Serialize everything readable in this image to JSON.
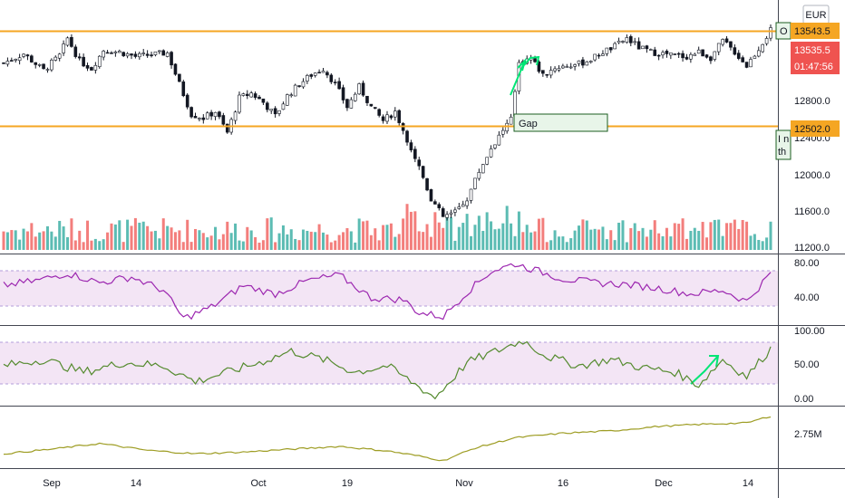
{
  "currency": "EUR",
  "price_tags": {
    "top_level": "13543.5",
    "last_price": "13535.5",
    "countdown": "01:47:56",
    "bottom_level": "12502.0"
  },
  "annotations": {
    "gap_label": "Gap",
    "top_note_fragment": "O",
    "side_note_line1": "I n",
    "side_note_line2": "th"
  },
  "colors": {
    "level_line": "#f5a623",
    "candle_up": "#26a69a",
    "candle_down": "#ef5350",
    "arrow": "#00e676",
    "rsi_line": "#9c27b0",
    "stoch_line": "#558b2f",
    "obv_line": "#9e9d24",
    "band_fill": "#f3e5f5",
    "last_price_bg": "#ef5350",
    "level_tag_bg": "#f5a623"
  },
  "chart_data": [
    {
      "type": "candlestick",
      "name": "price",
      "x_tick_labels": [
        "Sep",
        "14",
        "Oct",
        "19",
        "Nov",
        "16",
        "Dec",
        "14"
      ],
      "y_tick_labels": [
        "12800.0",
        "12400.0",
        "12000.0",
        "11600.0",
        "11200.0"
      ],
      "horizontal_levels": [
        13543.5,
        12502.0
      ],
      "ylim": [
        11150,
        13650
      ],
      "close_path": [
        {
          "x": 0,
          "y": 13180
        },
        {
          "x": 5,
          "y": 13280
        },
        {
          "x": 10,
          "y": 13100
        },
        {
          "x": 14,
          "y": 13260
        },
        {
          "x": 16,
          "y": 13450
        },
        {
          "x": 19,
          "y": 13200
        },
        {
          "x": 22,
          "y": 13120
        },
        {
          "x": 25,
          "y": 13320
        },
        {
          "x": 29,
          "y": 13300
        },
        {
          "x": 33,
          "y": 13250
        },
        {
          "x": 37,
          "y": 13270
        },
        {
          "x": 41,
          "y": 13290
        },
        {
          "x": 44,
          "y": 12950
        },
        {
          "x": 47,
          "y": 12620
        },
        {
          "x": 50,
          "y": 12580
        },
        {
          "x": 53,
          "y": 12650
        },
        {
          "x": 56,
          "y": 12420
        },
        {
          "x": 59,
          "y": 12800
        },
        {
          "x": 62,
          "y": 12850
        },
        {
          "x": 65,
          "y": 12750
        },
        {
          "x": 68,
          "y": 12600
        },
        {
          "x": 71,
          "y": 12820
        },
        {
          "x": 74,
          "y": 12950
        },
        {
          "x": 77,
          "y": 13050
        },
        {
          "x": 80,
          "y": 13120
        },
        {
          "x": 83,
          "y": 12950
        },
        {
          "x": 86,
          "y": 12700
        },
        {
          "x": 89,
          "y": 12920
        },
        {
          "x": 92,
          "y": 12700
        },
        {
          "x": 95,
          "y": 12550
        },
        {
          "x": 98,
          "y": 12650
        },
        {
          "x": 101,
          "y": 12350
        },
        {
          "x": 104,
          "y": 12050
        },
        {
          "x": 107,
          "y": 11700
        },
        {
          "x": 110,
          "y": 11500
        },
        {
          "x": 113,
          "y": 11550
        },
        {
          "x": 116,
          "y": 11700
        },
        {
          "x": 119,
          "y": 12000
        },
        {
          "x": 122,
          "y": 12250
        },
        {
          "x": 125,
          "y": 12450
        },
        {
          "x": 127,
          "y": 12560
        },
        {
          "x": 129,
          "y": 13200
        },
        {
          "x": 132,
          "y": 13230
        },
        {
          "x": 135,
          "y": 13050
        },
        {
          "x": 138,
          "y": 13130
        },
        {
          "x": 141,
          "y": 13150
        },
        {
          "x": 144,
          "y": 13170
        },
        {
          "x": 147,
          "y": 13220
        },
        {
          "x": 150,
          "y": 13300
        },
        {
          "x": 153,
          "y": 13360
        },
        {
          "x": 156,
          "y": 13450
        },
        {
          "x": 159,
          "y": 13350
        },
        {
          "x": 162,
          "y": 13300
        },
        {
          "x": 165,
          "y": 13280
        },
        {
          "x": 168,
          "y": 13260
        },
        {
          "x": 171,
          "y": 13250
        },
        {
          "x": 174,
          "y": 13300
        },
        {
          "x": 177,
          "y": 13240
        },
        {
          "x": 180,
          "y": 13420
        },
        {
          "x": 183,
          "y": 13300
        },
        {
          "x": 186,
          "y": 13150
        },
        {
          "x": 189,
          "y": 13340
        },
        {
          "x": 192,
          "y": 13535.5
        }
      ]
    },
    {
      "type": "bar",
      "name": "volume",
      "description_from_pixels": "volume histogram at the bottom of the price pane, bars coloured by candle direction"
    },
    {
      "type": "line",
      "name": "oscillator-1",
      "y_tick_labels": [
        "80.00",
        "40.00"
      ],
      "ylim": [
        14,
        87
      ],
      "band": [
        30,
        70
      ],
      "points": [
        {
          "x": 0,
          "y": 55
        },
        {
          "x": 8,
          "y": 60
        },
        {
          "x": 16,
          "y": 68
        },
        {
          "x": 24,
          "y": 58
        },
        {
          "x": 32,
          "y": 64
        },
        {
          "x": 40,
          "y": 50
        },
        {
          "x": 45,
          "y": 20
        },
        {
          "x": 52,
          "y": 32
        },
        {
          "x": 60,
          "y": 55
        },
        {
          "x": 68,
          "y": 46
        },
        {
          "x": 76,
          "y": 60
        },
        {
          "x": 84,
          "y": 66
        },
        {
          "x": 92,
          "y": 42
        },
        {
          "x": 100,
          "y": 40
        },
        {
          "x": 104,
          "y": 26
        },
        {
          "x": 110,
          "y": 22
        },
        {
          "x": 116,
          "y": 48
        },
        {
          "x": 122,
          "y": 70
        },
        {
          "x": 128,
          "y": 78
        },
        {
          "x": 134,
          "y": 70
        },
        {
          "x": 140,
          "y": 62
        },
        {
          "x": 148,
          "y": 58
        },
        {
          "x": 156,
          "y": 56
        },
        {
          "x": 164,
          "y": 52
        },
        {
          "x": 172,
          "y": 46
        },
        {
          "x": 180,
          "y": 50
        },
        {
          "x": 186,
          "y": 38
        },
        {
          "x": 192,
          "y": 68
        }
      ]
    },
    {
      "type": "line",
      "name": "oscillator-2",
      "y_tick_labels": [
        "100.00",
        "50.00",
        "0.00"
      ],
      "ylim": [
        -5,
        115
      ],
      "band": [
        20,
        80
      ],
      "points": [
        {
          "x": 0,
          "y": 55
        },
        {
          "x": 10,
          "y": 65
        },
        {
          "x": 20,
          "y": 45
        },
        {
          "x": 30,
          "y": 60
        },
        {
          "x": 40,
          "y": 55
        },
        {
          "x": 48,
          "y": 30
        },
        {
          "x": 56,
          "y": 45
        },
        {
          "x": 64,
          "y": 60
        },
        {
          "x": 72,
          "y": 78
        },
        {
          "x": 80,
          "y": 65
        },
        {
          "x": 88,
          "y": 45
        },
        {
          "x": 96,
          "y": 55
        },
        {
          "x": 102,
          "y": 30
        },
        {
          "x": 108,
          "y": 5
        },
        {
          "x": 116,
          "y": 60
        },
        {
          "x": 124,
          "y": 80
        },
        {
          "x": 130,
          "y": 95
        },
        {
          "x": 136,
          "y": 70
        },
        {
          "x": 144,
          "y": 55
        },
        {
          "x": 152,
          "y": 65
        },
        {
          "x": 160,
          "y": 52
        },
        {
          "x": 168,
          "y": 45
        },
        {
          "x": 174,
          "y": 25
        },
        {
          "x": 180,
          "y": 65
        },
        {
          "x": 186,
          "y": 38
        },
        {
          "x": 192,
          "y": 82
        }
      ]
    },
    {
      "type": "line",
      "name": "cumulative",
      "y_tick_labels": [
        "2.75M"
      ],
      "ylim": [
        0,
        100
      ],
      "points": [
        {
          "x": 0,
          "y": 22
        },
        {
          "x": 12,
          "y": 30
        },
        {
          "x": 24,
          "y": 40
        },
        {
          "x": 36,
          "y": 28
        },
        {
          "x": 48,
          "y": 22
        },
        {
          "x": 60,
          "y": 25
        },
        {
          "x": 72,
          "y": 30
        },
        {
          "x": 84,
          "y": 35
        },
        {
          "x": 96,
          "y": 27
        },
        {
          "x": 104,
          "y": 18
        },
        {
          "x": 110,
          "y": 10
        },
        {
          "x": 118,
          "y": 32
        },
        {
          "x": 128,
          "y": 50
        },
        {
          "x": 140,
          "y": 58
        },
        {
          "x": 152,
          "y": 62
        },
        {
          "x": 164,
          "y": 70
        },
        {
          "x": 176,
          "y": 74
        },
        {
          "x": 186,
          "y": 76
        },
        {
          "x": 192,
          "y": 88
        }
      ]
    }
  ]
}
